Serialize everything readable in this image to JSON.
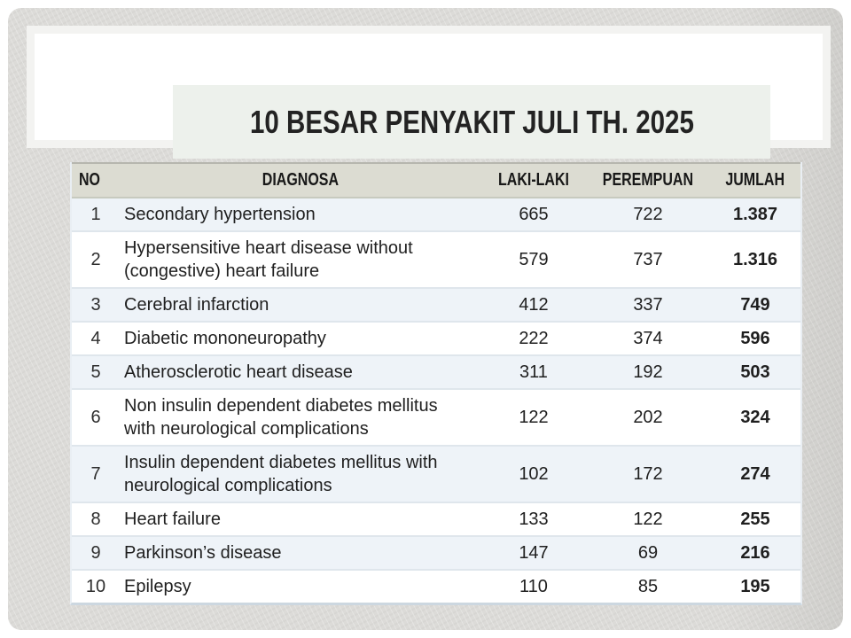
{
  "slide": {
    "title": "10 BESAR PENYAKIT JULI TH. 2025"
  },
  "table": {
    "headers": {
      "no": "NO",
      "diagnosa": "DIAGNOSA",
      "laki_laki": "LAKI-LAKI",
      "perempuan": "PEREMPUAN",
      "jumlah": "JUMLAH"
    },
    "rows": [
      {
        "no": "1",
        "diagnosa": "Secondary hypertension",
        "laki_laki": "665",
        "perempuan": "722",
        "jumlah": "1.387"
      },
      {
        "no": "2",
        "diagnosa": "Hypersensitive heart disease without\n(congestive) heart failure",
        "laki_laki": "579",
        "perempuan": "737",
        "jumlah": "1.316"
      },
      {
        "no": "3",
        "diagnosa": "Cerebral infarction",
        "laki_laki": "412",
        "perempuan": "337",
        "jumlah": "749"
      },
      {
        "no": "4",
        "diagnosa": "Diabetic mononeuropathy",
        "laki_laki": "222",
        "perempuan": "374",
        "jumlah": "596"
      },
      {
        "no": "5",
        "diagnosa": "Atherosclerotic heart disease",
        "laki_laki": "311",
        "perempuan": "192",
        "jumlah": "503"
      },
      {
        "no": "6",
        "diagnosa": "Non insulin dependent diabetes mellitus\nwith neurological complications",
        "laki_laki": "122",
        "perempuan": "202",
        "jumlah": "324"
      },
      {
        "no": "7",
        "diagnosa": "Insulin dependent diabetes mellitus with\nneurological complications",
        "laki_laki": "102",
        "perempuan": "172",
        "jumlah": "274"
      },
      {
        "no": "8",
        "diagnosa": "Heart failure",
        "laki_laki": "133",
        "perempuan": "122",
        "jumlah": "255"
      },
      {
        "no": "9",
        "diagnosa": "Parkinson’s disease",
        "laki_laki": "147",
        "perempuan": "69",
        "jumlah": "216"
      },
      {
        "no": "10",
        "diagnosa": "Epilepsy",
        "laki_laki": "110",
        "perempuan": "85",
        "jumlah": "195"
      }
    ]
  },
  "colors": {
    "slide_background": "#dcdbd8",
    "panel_background": "#ffffff",
    "title_box_background": "#edf1ec",
    "header_background": "#dcdcd2",
    "row_stripe": "#eef3f8",
    "row_white": "#ffffff",
    "text": "#1f1f1f"
  }
}
